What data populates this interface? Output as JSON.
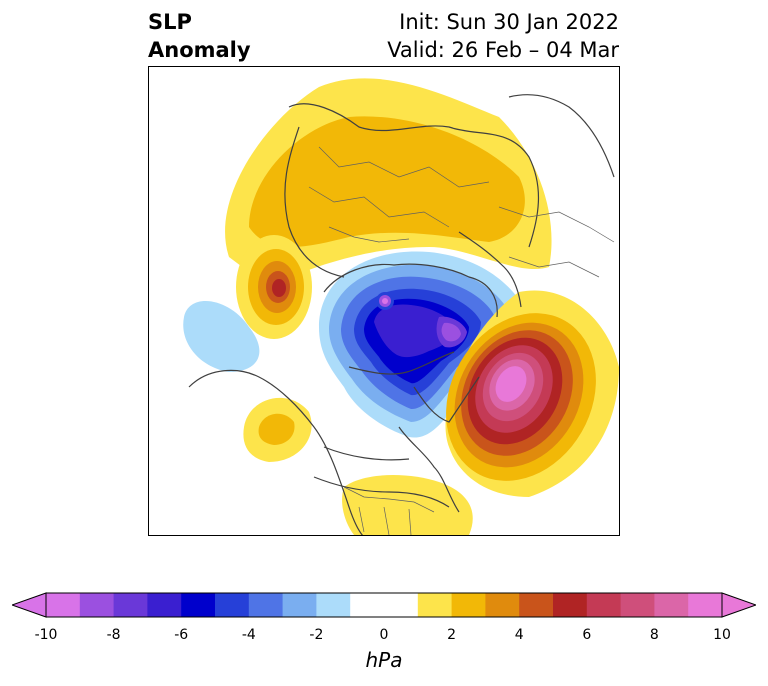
{
  "title": {
    "left_line1": "SLP",
    "left_line2": "Anomaly",
    "right_line1": "Init: Sun 30 Jan 2022",
    "right_line2": "Valid: 26 Feb – 04 Mar"
  },
  "colorbar": {
    "unit": "hPa",
    "min": -10,
    "max": 10,
    "extend": "both",
    "ticks": [
      "-10",
      "-8",
      "-6",
      "-4",
      "-2",
      "0",
      "2",
      "4",
      "6",
      "8",
      "10"
    ],
    "colors": [
      "#d873e8",
      "#9b50e0",
      "#6a38d8",
      "#3a1fd0",
      "#0000cc",
      "#2640d8",
      "#4f74e6",
      "#7aaef0",
      "#acdcfa",
      "#ffffff",
      "#ffffff",
      "#fde44b",
      "#f2b807",
      "#e08b0d",
      "#c9541b",
      "#b02424",
      "#c43a55",
      "#cf4f7b",
      "#db66a8",
      "#e878d8"
    ],
    "under_color": "#d873e8",
    "over_color": "#e878d8"
  },
  "map": {
    "projection": "polar-stereographic",
    "region": "Northern Hemisphere",
    "anomalies": [
      {
        "name": "positive-europe-asia",
        "sign": "positive",
        "peak_hpa": 3
      },
      {
        "name": "positive-bering",
        "sign": "positive",
        "peak_hpa": 7
      },
      {
        "name": "negative-arctic",
        "sign": "negative",
        "peak_hpa": -10
      },
      {
        "name": "positive-north-atlantic",
        "sign": "positive",
        "peak_hpa": 10
      },
      {
        "name": "negative-central-asia",
        "sign": "negative",
        "peak_hpa": -2
      },
      {
        "name": "positive-north-america",
        "sign": "positive",
        "peak_hpa": 2
      }
    ]
  }
}
